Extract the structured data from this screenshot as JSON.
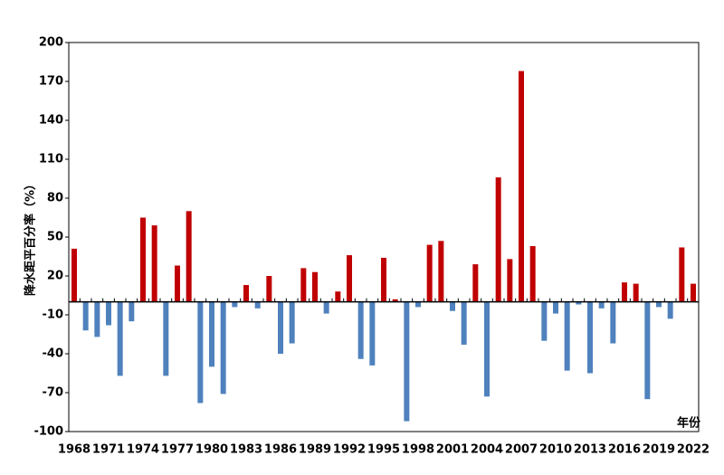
{
  "chart_data": {
    "type": "bar",
    "y_axis_label": "降水距平百分率（%）",
    "x_axis_label": "年份",
    "categories": [
      "1968",
      null,
      null,
      "1971",
      null,
      null,
      "1974",
      null,
      null,
      "1977",
      null,
      null,
      "1980",
      null,
      null,
      "1983",
      null,
      null,
      "1986",
      null,
      null,
      "1989",
      null,
      null,
      "1992",
      null,
      null,
      "1995",
      null,
      null,
      "1998",
      null,
      null,
      "2001",
      null,
      null,
      "2004",
      null,
      null,
      "2007",
      null,
      null,
      "2010",
      null,
      null,
      "2013",
      null,
      null,
      "2016",
      null,
      null,
      "2019",
      null,
      null,
      "2022"
    ],
    "values": [
      41,
      -22,
      -27,
      -18,
      -57,
      -15,
      65,
      59,
      -57,
      28,
      70,
      -78,
      -50,
      -71,
      -4,
      13,
      -5,
      20,
      -40,
      -32,
      26,
      23,
      -9,
      8,
      36,
      -44,
      -49,
      34,
      2,
      -92,
      -4,
      44,
      47,
      -7,
      -33,
      29,
      -73,
      96,
      33,
      178,
      43,
      -30,
      -9,
      -53,
      -2,
      -55,
      -5,
      -32,
      15,
      14,
      -75,
      -4,
      -13,
      42,
      14
    ],
    "positive_color": "#c00000",
    "negative_color": "#4f81bd",
    "ylim": [
      -100,
      200
    ],
    "yticks": [
      -100,
      -70,
      -40,
      -10,
      20,
      50,
      80,
      110,
      140,
      170,
      200
    ]
  }
}
